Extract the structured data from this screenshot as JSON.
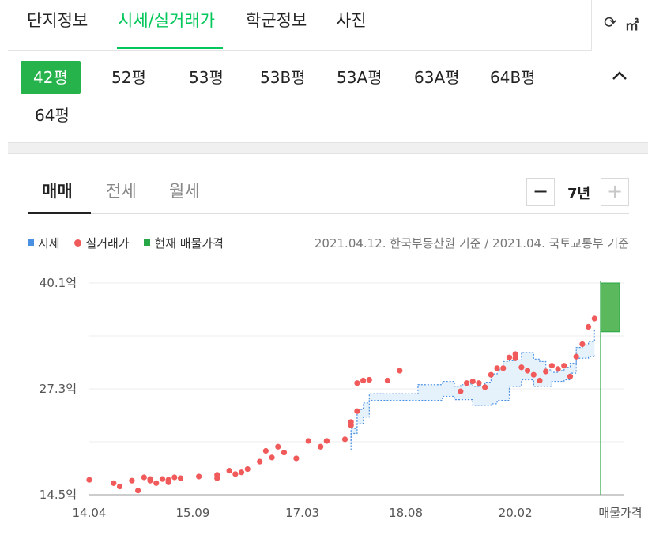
{
  "tabs": [
    {
      "label": "단지정보"
    },
    {
      "label": "시세/실거래가"
    },
    {
      "label": "학군정보"
    },
    {
      "label": "사진"
    }
  ],
  "active_tab": "시세/실거래가",
  "unit_toggle": {
    "icon": "refresh-icon",
    "label": "㎡"
  },
  "sizes": [
    {
      "label": "42평"
    },
    {
      "label": "52평"
    },
    {
      "label": "53평"
    },
    {
      "label": "53B평"
    },
    {
      "label": "53A평"
    },
    {
      "label": "63A평"
    },
    {
      "label": "64B평"
    },
    {
      "label": "64평"
    }
  ],
  "active_size": "42평",
  "trade_tabs": [
    {
      "label": "매매"
    },
    {
      "label": "전세"
    },
    {
      "label": "월세"
    }
  ],
  "active_trade_tab": "매매",
  "period": {
    "minus": "−",
    "value": "7년",
    "plus": "+"
  },
  "legend": [
    {
      "label": "시세",
      "color": "#4a90e2",
      "shape": "square"
    },
    {
      "label": "실거래가",
      "color": "#f05a5a",
      "shape": "dot"
    },
    {
      "label": "현재 매물가격",
      "color": "#27a745",
      "shape": "square"
    }
  ],
  "basis_text": "2021.04.12. 한국부동산원 기준 / 2021.04. 국토교통부 기준",
  "chart_data": {
    "type": "scatter",
    "ylim": [
      14.5,
      40.1
    ],
    "y_ticks": [
      "40.1억",
      "27.3억",
      "14.5억"
    ],
    "x_ticks": [
      "14.04",
      "15.09",
      "17.03",
      "18.08",
      "20.02",
      "매물가격"
    ],
    "x_range": [
      "2014-04",
      "2021-04"
    ],
    "colors": {
      "market": "#4a90e2",
      "market_fill": "#e3f1fb",
      "trade": "#f05a5a",
      "listing": "#5cb85c",
      "listing_line": "#27a745"
    },
    "market_price": {
      "name": "시세",
      "low": [
        [
          "2017-11",
          19.9
        ],
        [
          "2017-11",
          21.9
        ],
        [
          "2017-12",
          23.1
        ],
        [
          "2018-01",
          23.9
        ],
        [
          "2018-02",
          25.9
        ],
        [
          "2018-04",
          25.9
        ],
        [
          "2018-09",
          25.9
        ],
        [
          "2018-10",
          25.9
        ],
        [
          "2018-11",
          25.9
        ],
        [
          "2018-12",
          25.9
        ],
        [
          "2019-01",
          25.9
        ],
        [
          "2019-02",
          26.4
        ],
        [
          "2019-03",
          26.4
        ],
        [
          "2019-04",
          26.0
        ],
        [
          "2019-05",
          26.0
        ],
        [
          "2019-06",
          26.0
        ],
        [
          "2019-07",
          25.3
        ],
        [
          "2019-08",
          25.3
        ],
        [
          "2019-09",
          25.3
        ],
        [
          "2019-10",
          25.5
        ],
        [
          "2019-11",
          25.9
        ],
        [
          "2019-12",
          25.9
        ],
        [
          "2020-01",
          27.6
        ],
        [
          "2020-02",
          27.6
        ],
        [
          "2020-03",
          28.4
        ],
        [
          "2020-04",
          28.4
        ],
        [
          "2020-05",
          27.6
        ],
        [
          "2020-06",
          27.6
        ],
        [
          "2020-07",
          27.6
        ],
        [
          "2020-08",
          28.2
        ],
        [
          "2020-09",
          28.2
        ],
        [
          "2020-10",
          28.4
        ],
        [
          "2020-11",
          29.2
        ],
        [
          "2020-12",
          31.0
        ],
        [
          "2021-01",
          31.0
        ],
        [
          "2021-02",
          31.2
        ],
        [
          "2021-03",
          31.4
        ]
      ],
      "high": [
        [
          "2017-11",
          20.6
        ],
        [
          "2017-11",
          22.5
        ],
        [
          "2017-12",
          24.8
        ],
        [
          "2018-01",
          25.6
        ],
        [
          "2018-02",
          26.7
        ],
        [
          "2018-04",
          26.7
        ],
        [
          "2018-09",
          26.7
        ],
        [
          "2018-10",
          27.8
        ],
        [
          "2018-11",
          27.8
        ],
        [
          "2018-12",
          27.8
        ],
        [
          "2019-01",
          27.8
        ],
        [
          "2019-02",
          28.2
        ],
        [
          "2019-03",
          28.2
        ],
        [
          "2019-04",
          27.6
        ],
        [
          "2019-05",
          27.8
        ],
        [
          "2019-06",
          27.9
        ],
        [
          "2019-07",
          27.6
        ],
        [
          "2019-08",
          27.7
        ],
        [
          "2019-09",
          28.1
        ],
        [
          "2019-10",
          29.1
        ],
        [
          "2019-11",
          29.6
        ],
        [
          "2019-12",
          30.6
        ],
        [
          "2020-01",
          30.7
        ],
        [
          "2020-02",
          30.8
        ],
        [
          "2020-03",
          31.7
        ],
        [
          "2020-04",
          31.7
        ],
        [
          "2020-05",
          30.9
        ],
        [
          "2020-06",
          30.6
        ],
        [
          "2020-07",
          29.6
        ],
        [
          "2020-08",
          29.3
        ],
        [
          "2020-09",
          29.5
        ],
        [
          "2020-10",
          29.9
        ],
        [
          "2020-11",
          30.4
        ],
        [
          "2020-12",
          32.3
        ],
        [
          "2021-01",
          32.6
        ],
        [
          "2021-02",
          33.0
        ],
        [
          "2021-03",
          34.6
        ]
      ]
    },
    "trades": {
      "name": "실거래가",
      "points": [
        [
          "2014-04",
          16.3
        ],
        [
          "2014-08",
          15.9
        ],
        [
          "2014-09",
          15.5
        ],
        [
          "2014-11",
          16.2
        ],
        [
          "2014-12",
          15.0
        ],
        [
          "2015-01",
          16.6
        ],
        [
          "2015-02",
          16.4
        ],
        [
          "2015-02",
          16.2
        ],
        [
          "2015-03",
          15.9
        ],
        [
          "2015-04",
          16.4
        ],
        [
          "2015-05",
          16.0
        ],
        [
          "2015-05",
          16.3
        ],
        [
          "2015-06",
          16.6
        ],
        [
          "2015-07",
          16.5
        ],
        [
          "2015-10",
          16.7
        ],
        [
          "2016-01",
          16.9
        ],
        [
          "2016-01",
          16.5
        ],
        [
          "2016-03",
          17.4
        ],
        [
          "2016-04",
          17.0
        ],
        [
          "2016-05",
          17.2
        ],
        [
          "2016-06",
          17.6
        ],
        [
          "2016-08",
          18.5
        ],
        [
          "2016-09",
          19.8
        ],
        [
          "2016-10",
          19.0
        ],
        [
          "2016-11",
          20.3
        ],
        [
          "2016-12",
          19.6
        ],
        [
          "2017-02",
          18.9
        ],
        [
          "2017-04",
          21.0
        ],
        [
          "2017-06",
          20.3
        ],
        [
          "2017-07",
          21.0
        ],
        [
          "2017-07",
          21.0
        ],
        [
          "2017-10",
          21.2
        ],
        [
          "2017-11",
          22.9
        ],
        [
          "2017-11",
          23.3
        ],
        [
          "2017-12",
          24.6
        ],
        [
          "2017-12",
          28.0
        ],
        [
          "2018-01",
          28.3
        ],
        [
          "2018-02",
          28.4
        ],
        [
          "2018-05",
          28.3
        ],
        [
          "2018-07",
          29.5
        ],
        [
          "2019-05",
          27.0
        ],
        [
          "2019-06",
          28.0
        ],
        [
          "2019-07",
          28.2
        ],
        [
          "2019-08",
          28.0
        ],
        [
          "2019-09",
          27.5
        ],
        [
          "2019-10",
          29.0
        ],
        [
          "2019-11",
          29.8
        ],
        [
          "2019-12",
          29.8
        ],
        [
          "2020-01",
          31.1
        ],
        [
          "2020-02",
          31.5
        ],
        [
          "2020-02",
          31.0
        ],
        [
          "2020-03",
          29.9
        ],
        [
          "2020-04",
          29.5
        ],
        [
          "2020-05",
          29.0
        ],
        [
          "2020-06",
          28.3
        ],
        [
          "2020-07",
          29.4
        ],
        [
          "2020-08",
          30.1
        ],
        [
          "2020-09",
          29.7
        ],
        [
          "2020-10",
          30.1
        ],
        [
          "2020-11",
          28.8
        ],
        [
          "2020-12",
          31.2
        ],
        [
          "2021-01",
          32.7
        ],
        [
          "2021-02",
          34.8
        ],
        [
          "2021-03",
          35.8
        ]
      ]
    },
    "listing": {
      "name": "현재 매물가격",
      "min": 34.2,
      "max": 40.1
    }
  }
}
